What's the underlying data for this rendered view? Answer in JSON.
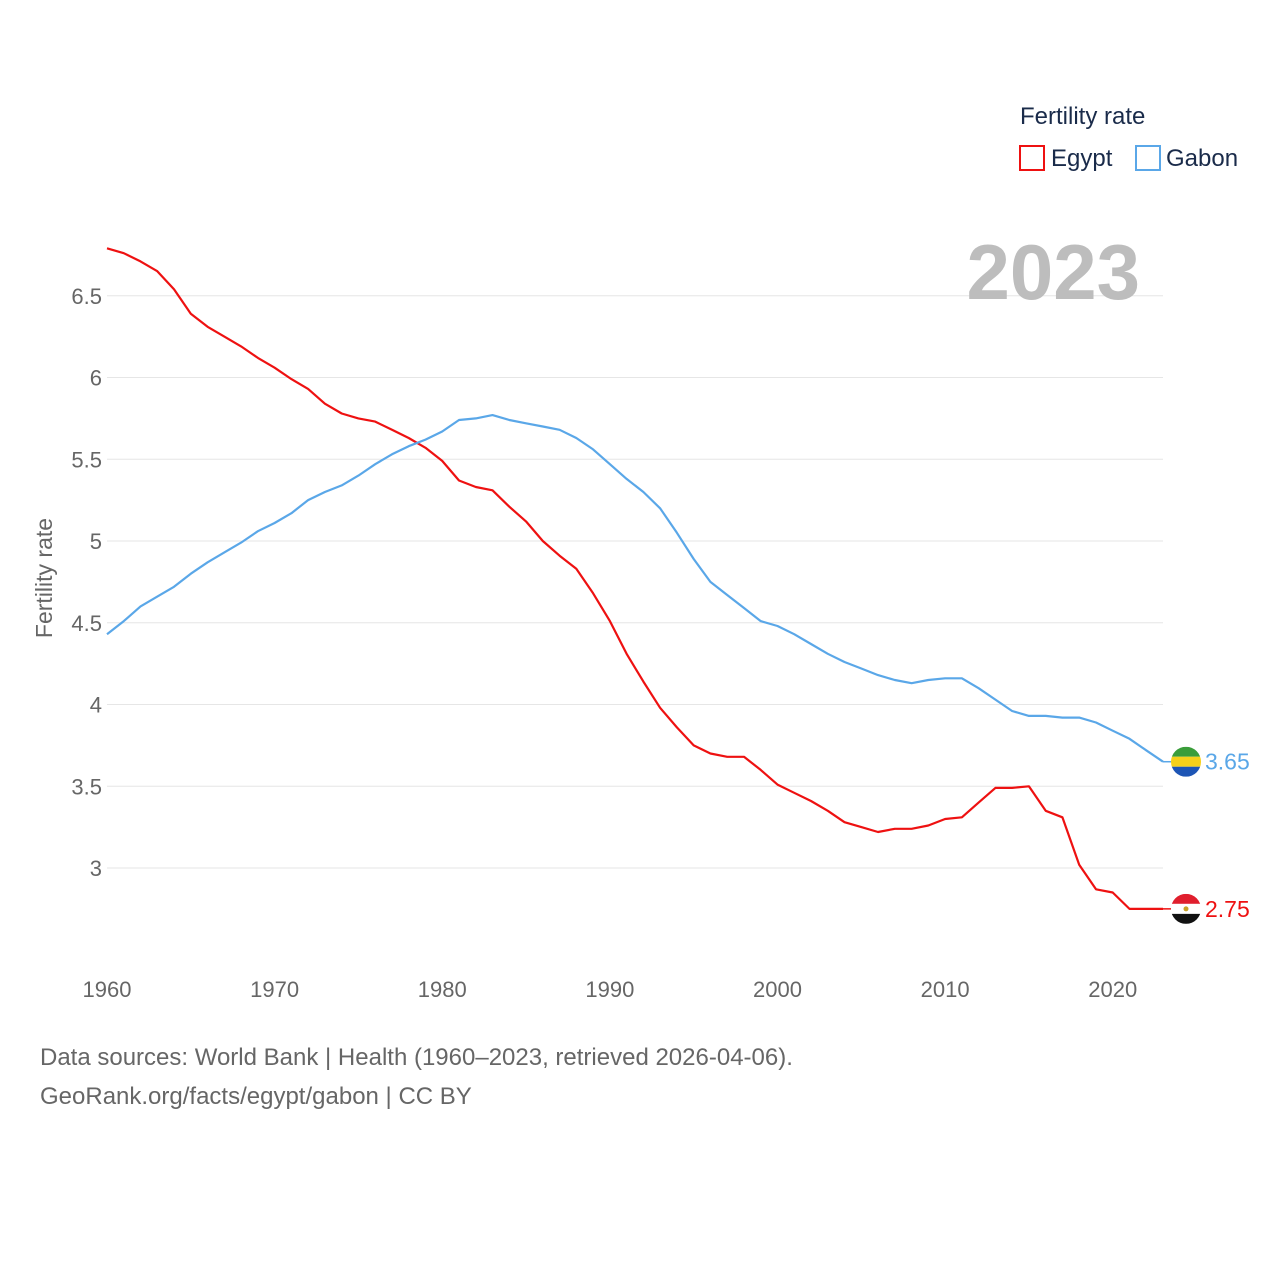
{
  "chart_data": {
    "type": "line",
    "legend_title": "Fertility rate",
    "ylabel": "Fertility rate",
    "xlabel": "",
    "year_label": "2023",
    "xlim": [
      1960,
      2023
    ],
    "ylim": [
      2.5,
      6.85
    ],
    "y_ticks": [
      3,
      3.5,
      4,
      4.5,
      5,
      5.5,
      6,
      6.5
    ],
    "y_tick_labels": [
      "3",
      "3.5",
      "4",
      "4.5",
      "5",
      "5.5",
      "6",
      "6.5"
    ],
    "x_ticks": [
      1960,
      1970,
      1980,
      1990,
      2000,
      2010,
      2020
    ],
    "x_tick_labels": [
      "1960",
      "1970",
      "1980",
      "1990",
      "2000",
      "2010",
      "2020"
    ],
    "legend_position": "top-right",
    "series": [
      {
        "name": "Egypt",
        "color": "#ee1111",
        "end_label": "2.75",
        "flag": "egypt-flag-icon",
        "x": [
          1960,
          1961,
          1962,
          1963,
          1964,
          1965,
          1966,
          1967,
          1968,
          1969,
          1970,
          1971,
          1972,
          1973,
          1974,
          1975,
          1976,
          1977,
          1978,
          1979,
          1980,
          1981,
          1982,
          1983,
          1984,
          1985,
          1986,
          1987,
          1988,
          1989,
          1990,
          1991,
          1992,
          1993,
          1994,
          1995,
          1996,
          1997,
          1998,
          1999,
          2000,
          2001,
          2002,
          2003,
          2004,
          2005,
          2006,
          2007,
          2008,
          2009,
          2010,
          2011,
          2012,
          2013,
          2014,
          2015,
          2016,
          2017,
          2018,
          2019,
          2020,
          2021,
          2022,
          2023
        ],
        "values": [
          6.79,
          6.76,
          6.71,
          6.65,
          6.54,
          6.39,
          6.31,
          6.25,
          6.19,
          6.12,
          6.06,
          5.99,
          5.93,
          5.84,
          5.78,
          5.75,
          5.73,
          5.68,
          5.63,
          5.57,
          5.49,
          5.37,
          5.33,
          5.31,
          5.21,
          5.12,
          5.0,
          4.91,
          4.83,
          4.68,
          4.51,
          4.31,
          4.14,
          3.98,
          3.86,
          3.75,
          3.7,
          3.68,
          3.68,
          3.6,
          3.51,
          3.46,
          3.41,
          3.35,
          3.28,
          3.25,
          3.22,
          3.24,
          3.24,
          3.26,
          3.3,
          3.31,
          3.4,
          3.49,
          3.49,
          3.5,
          3.35,
          3.31,
          3.02,
          2.87,
          2.85,
          2.75,
          2.75,
          2.75
        ]
      },
      {
        "name": "Gabon",
        "color": "#5aa7e8",
        "end_label": "3.65",
        "flag": "gabon-flag-icon",
        "x": [
          1960,
          1961,
          1962,
          1963,
          1964,
          1965,
          1966,
          1967,
          1968,
          1969,
          1970,
          1971,
          1972,
          1973,
          1974,
          1975,
          1976,
          1977,
          1978,
          1979,
          1980,
          1981,
          1982,
          1983,
          1984,
          1985,
          1986,
          1987,
          1988,
          1989,
          1990,
          1991,
          1992,
          1993,
          1994,
          1995,
          1996,
          1997,
          1998,
          1999,
          2000,
          2001,
          2002,
          2003,
          2004,
          2005,
          2006,
          2007,
          2008,
          2009,
          2010,
          2011,
          2012,
          2013,
          2014,
          2015,
          2016,
          2017,
          2018,
          2019,
          2020,
          2021,
          2022,
          2023
        ],
        "values": [
          4.43,
          4.51,
          4.6,
          4.66,
          4.72,
          4.8,
          4.87,
          4.93,
          4.99,
          5.06,
          5.11,
          5.17,
          5.25,
          5.3,
          5.34,
          5.4,
          5.47,
          5.53,
          5.58,
          5.62,
          5.67,
          5.74,
          5.75,
          5.77,
          5.74,
          5.72,
          5.7,
          5.68,
          5.63,
          5.56,
          5.47,
          5.38,
          5.3,
          5.2,
          5.05,
          4.89,
          4.75,
          4.67,
          4.59,
          4.51,
          4.48,
          4.43,
          4.37,
          4.31,
          4.26,
          4.22,
          4.18,
          4.15,
          4.13,
          4.15,
          4.16,
          4.16,
          4.1,
          4.03,
          3.96,
          3.93,
          3.93,
          3.92,
          3.92,
          3.89,
          3.84,
          3.79,
          3.72,
          3.65
        ]
      }
    ]
  },
  "footer": {
    "line1": "Data sources: World Bank | Health (1960–2023, retrieved 2026-04-06).",
    "line2": "GeoRank.org/facts/egypt/gabon | CC BY"
  }
}
